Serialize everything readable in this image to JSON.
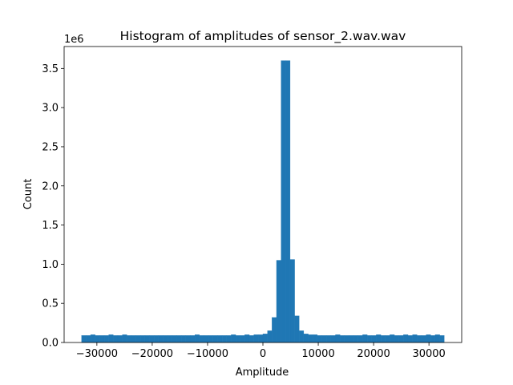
{
  "chart_data": {
    "type": "bar",
    "subtype": "histogram",
    "title": "Histogram of amplitudes of sensor_2.wav.wav",
    "xlabel": "Amplitude",
    "ylabel": "Count",
    "y_offset_text": "1e6",
    "bar_color": "#1f77b4",
    "xlim": [
      -35918,
      35917
    ],
    "ylim": [
      0,
      3780000
    ],
    "x_ticks": [
      -30000,
      -20000,
      -10000,
      0,
      10000,
      20000,
      30000
    ],
    "x_tick_labels": [
      "−30000",
      "−20000",
      "−10000",
      "0",
      "10000",
      "20000",
      "30000"
    ],
    "y_ticks": [
      0,
      500000,
      1000000,
      1500000,
      2000000,
      2500000,
      3000000,
      3500000
    ],
    "y_tick_labels": [
      "0.0",
      "0.5",
      "1.0",
      "1.5",
      "2.0",
      "2.5",
      "3.0",
      "3.5"
    ],
    "grid": false,
    "legend": false,
    "bin_start": -32768,
    "bin_width": 819.2,
    "values": [
      90000,
      90000,
      100000,
      90000,
      90000,
      90000,
      100000,
      90000,
      90000,
      100000,
      90000,
      90000,
      90000,
      90000,
      90000,
      90000,
      90000,
      90000,
      90000,
      90000,
      90000,
      90000,
      90000,
      90000,
      90000,
      100000,
      90000,
      90000,
      90000,
      90000,
      90000,
      90000,
      90000,
      100000,
      90000,
      90000,
      100000,
      90000,
      100000,
      100000,
      110000,
      150000,
      320000,
      1050000,
      3600000,
      3600000,
      1060000,
      340000,
      150000,
      110000,
      100000,
      100000,
      90000,
      90000,
      90000,
      90000,
      100000,
      90000,
      90000,
      90000,
      90000,
      90000,
      100000,
      90000,
      90000,
      100000,
      90000,
      90000,
      100000,
      90000,
      90000,
      100000,
      90000,
      100000,
      90000,
      90000,
      100000,
      90000,
      100000,
      90000
    ]
  }
}
